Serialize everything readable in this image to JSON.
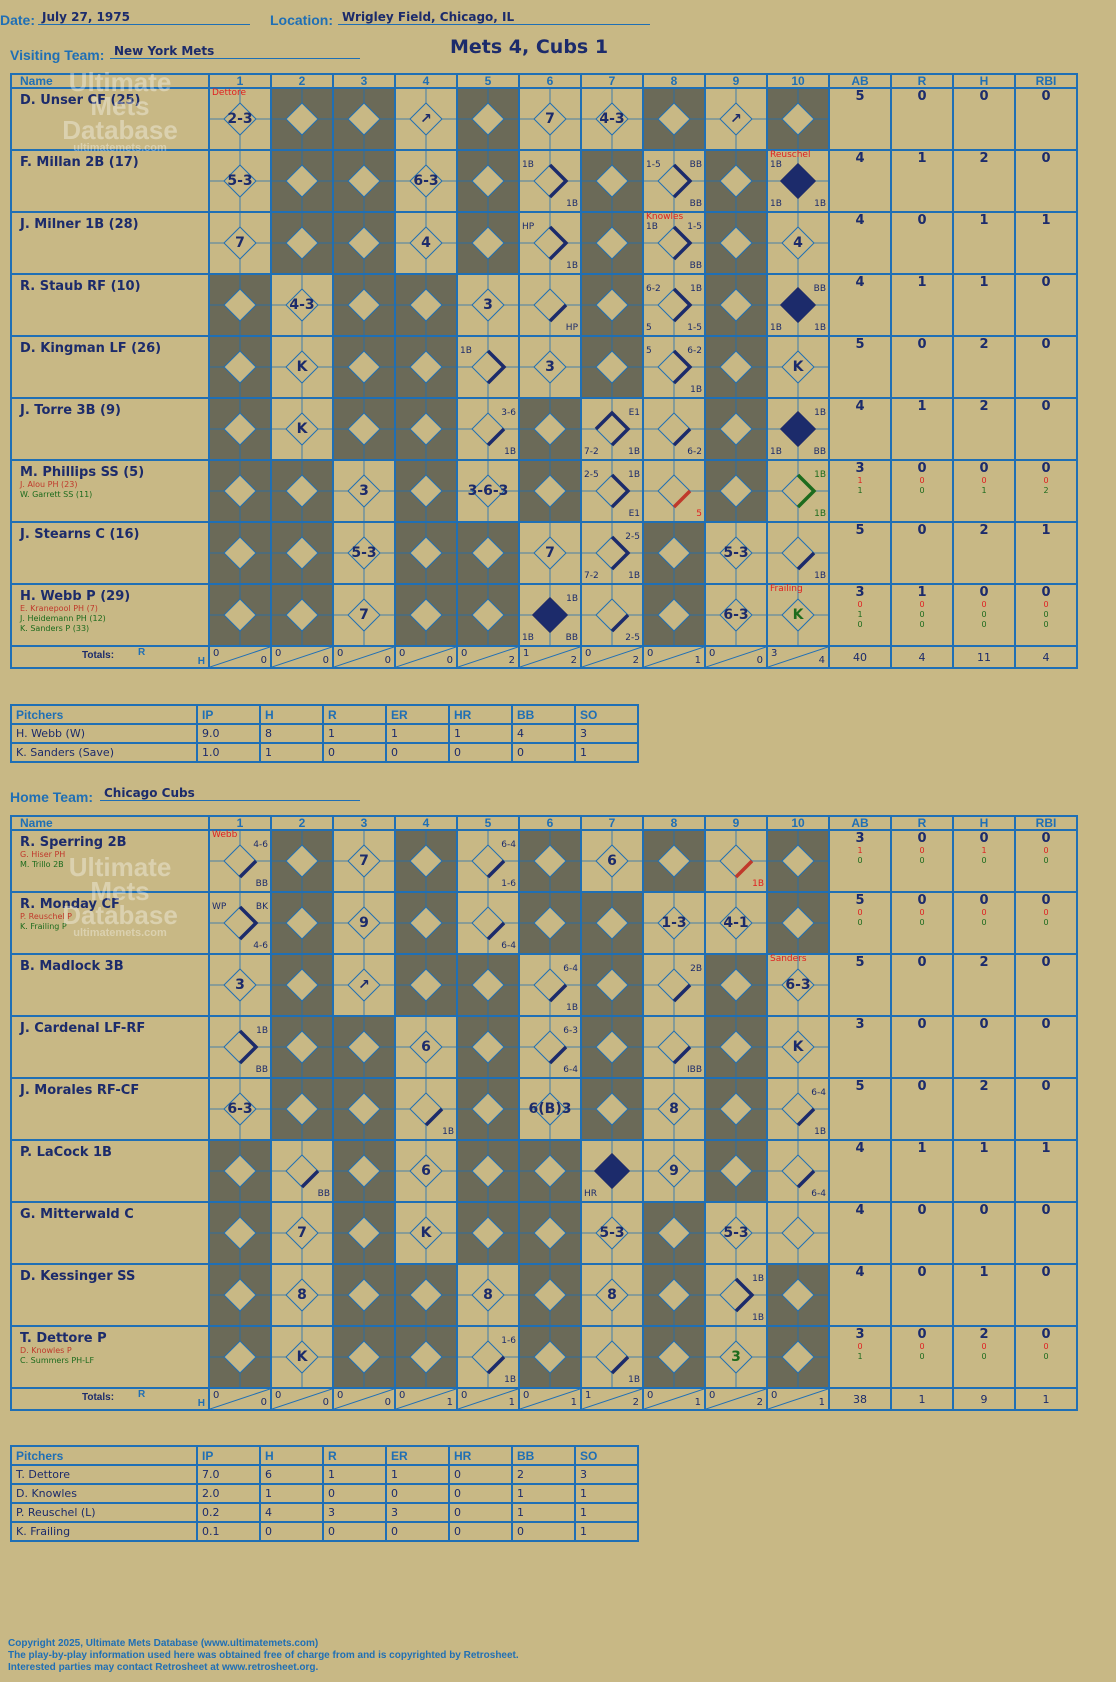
{
  "header": {
    "date_label": "Date:",
    "date": "July 27, 1975",
    "location_label": "Location:",
    "location": "Wrigley Field, Chicago, IL",
    "visiting_label": "Visiting Team:",
    "visiting_team": "New York Mets",
    "home_label": "Home Team:",
    "home_team": "Chicago Cubs",
    "result": "Mets 4, Cubs 1"
  },
  "columns": {
    "name": "Name",
    "innings": [
      "1",
      "2",
      "3",
      "4",
      "5",
      "6",
      "7",
      "8",
      "9",
      "10"
    ],
    "stats": [
      "AB",
      "R",
      "H",
      "RBI"
    ]
  },
  "totals_label": "Totals:",
  "rh_r": "R",
  "rh_h": "H",
  "pitch_cols": [
    "Pitchers",
    "IP",
    "H",
    "R",
    "ER",
    "HR",
    "BB",
    "SO"
  ],
  "watermark": {
    "line1": "Ultimate",
    "line2": "Mets",
    "line3": "Database",
    "url": "ultimatemets.com"
  },
  "visitors": {
    "batters": [
      {
        "name": "D. Unser CF (25)",
        "subs": [],
        "dark": [
          2,
          3,
          5,
          8,
          10
        ],
        "stats": [
          "5",
          "0",
          "0",
          "0"
        ],
        "plays": {
          "1": {
            "text": "2-3",
            "note": "Dettore"
          },
          "4": {
            "text": "↗"
          },
          "6": {
            "text": "7"
          },
          "7": {
            "text": "4-3"
          },
          "9": {
            "text": "↗"
          }
        }
      },
      {
        "name": "F. Millan 2B (17)",
        "subs": [],
        "dark": [
          2,
          3,
          5,
          7,
          9
        ],
        "stats": [
          "4",
          "1",
          "2",
          "0"
        ],
        "plays": {
          "1": {
            "text": "5-3"
          },
          "4": {
            "text": "6-3"
          },
          "6": {
            "path": 2,
            "tl": "1B",
            "br": "1B"
          },
          "8": {
            "path": 2,
            "tl": "1-5",
            "tr": "BB",
            "br": "BB"
          },
          "10": {
            "path": 4,
            "tl": "1B",
            "bl": "1B",
            "br": "1B",
            "note": "Reuschel"
          }
        }
      },
      {
        "name": "J. Milner 1B (28)",
        "subs": [],
        "dark": [
          2,
          3,
          5,
          7,
          9
        ],
        "stats": [
          "4",
          "0",
          "1",
          "1"
        ],
        "plays": {
          "1": {
            "text": "7"
          },
          "4": {
            "text": "4"
          },
          "6": {
            "path": 2,
            "tl": "HP",
            "br": "1B"
          },
          "8": {
            "path": 2,
            "tl": "1B",
            "tr": "1-5",
            "br": "BB",
            "note": "Knowles"
          },
          "10": {
            "text": "4"
          }
        }
      },
      {
        "name": "R. Staub RF (10)",
        "subs": [],
        "dark": [
          1,
          3,
          4,
          7,
          9
        ],
        "stats": [
          "4",
          "1",
          "1",
          "0"
        ],
        "plays": {
          "2": {
            "text": "4-3"
          },
          "5": {
            "text": "3"
          },
          "6": {
            "path": 1,
            "br": "HP"
          },
          "8": {
            "path": 2,
            "tl": "6-2",
            "tr": "1B",
            "bl": "5",
            "br": "1-5"
          },
          "10": {
            "path": 4,
            "tr": "BB",
            "bl": "1B",
            "br": "1B"
          }
        }
      },
      {
        "name": "D. Kingman LF (26)",
        "subs": [],
        "dark": [
          1,
          3,
          4,
          7,
          9
        ],
        "stats": [
          "5",
          "0",
          "2",
          "0"
        ],
        "plays": {
          "2": {
            "text": "K"
          },
          "5": {
            "path": 2,
            "tl": "1B"
          },
          "6": {
            "text": "3"
          },
          "8": {
            "path": 2,
            "tl": "5",
            "tr": "6-2",
            "br": "1B"
          },
          "10": {
            "text": "K"
          }
        }
      },
      {
        "name": "J. Torre 3B (9)",
        "subs": [],
        "dark": [
          1,
          3,
          4,
          6,
          9
        ],
        "stats": [
          "4",
          "1",
          "2",
          "0"
        ],
        "plays": {
          "2": {
            "text": "K"
          },
          "5": {
            "path": 1,
            "tr": "3-6",
            "br": "1B"
          },
          "7": {
            "path": 3,
            "tr": "E1",
            "bl": "7-2",
            "br": "1B"
          },
          "8": {
            "path": 1,
            "br": "6-2"
          },
          "10": {
            "path": 4,
            "tr": "1B",
            "bl": "1B",
            "br": "BB"
          }
        }
      },
      {
        "name": "M. Phillips SS (5)",
        "subs": [
          {
            "name": "J. Alou PH (23)",
            "c": "r",
            "stats": [
              "1",
              "0",
              "0",
              "0"
            ]
          },
          {
            "name": "W. Garrett SS (11)",
            "c": "g",
            "stats": [
              "1",
              "0",
              "1",
              "2"
            ]
          }
        ],
        "dark": [
          1,
          2,
          4,
          6,
          9
        ],
        "stats": [
          "3",
          "0",
          "0",
          "0"
        ],
        "plays": {
          "3": {
            "text": "3"
          },
          "5": {
            "text": "3-6-3"
          },
          "7": {
            "path": 2,
            "tl": "2-5",
            "tr": "1B",
            "br": "E1"
          },
          "8": {
            "path": 1,
            "red": true,
            "br": "5"
          },
          "10": {
            "path": 2,
            "green": true,
            "tr": "1B",
            "br": "1B"
          }
        }
      },
      {
        "name": "J. Stearns C (16)",
        "subs": [],
        "dark": [
          1,
          2,
          4,
          5,
          8
        ],
        "stats": [
          "5",
          "0",
          "2",
          "1"
        ],
        "plays": {
          "3": {
            "text": "5-3"
          },
          "6": {
            "text": "7"
          },
          "7": {
            "path": 2,
            "tr": "2-5",
            "bl": "7-2",
            "br": "1B"
          },
          "9": {
            "text": "5-3"
          },
          "10": {
            "path": 1,
            "br": "1B"
          }
        }
      },
      {
        "name": "H. Webb P (29)",
        "subs": [
          {
            "name": "E. Kranepool PH (7)",
            "c": "r",
            "stats": [
              "0",
              "0",
              "0",
              "0"
            ]
          },
          {
            "name": "J. Heidemann PH (12)",
            "c": "g",
            "stats": [
              "1",
              "0",
              "0",
              "0"
            ]
          },
          {
            "name": "K. Sanders P (33)",
            "c": "g",
            "stats": [
              "0",
              "0",
              "0",
              "0"
            ]
          }
        ],
        "dark": [
          1,
          2,
          4,
          5,
          8
        ],
        "stats": [
          "3",
          "1",
          "0",
          "0"
        ],
        "plays": {
          "3": {
            "text": "7"
          },
          "6": {
            "path": 4,
            "tr": "1B",
            "bl": "1B",
            "br": "BB"
          },
          "7": {
            "path": 1,
            "br": "2-5"
          },
          "9": {
            "text": "6-3"
          },
          "10": {
            "text": "K",
            "green": true,
            "note": "Frailing"
          }
        }
      }
    ],
    "totals": [
      [
        "0",
        "0"
      ],
      [
        "0",
        "0"
      ],
      [
        "0",
        "0"
      ],
      [
        "0",
        "0"
      ],
      [
        "0",
        "2"
      ],
      [
        "1",
        "2"
      ],
      [
        "0",
        "2"
      ],
      [
        "0",
        "1"
      ],
      [
        "0",
        "0"
      ],
      [
        "3",
        "4"
      ]
    ],
    "stat_totals": [
      "40",
      "4",
      "11",
      "4"
    ],
    "pitchers": [
      [
        "H. Webb (W)",
        "9.0",
        "8",
        "1",
        "1",
        "1",
        "4",
        "3"
      ],
      [
        "K. Sanders (Save)",
        "1.0",
        "1",
        "0",
        "0",
        "0",
        "0",
        "1"
      ]
    ]
  },
  "home": {
    "batters": [
      {
        "name": "R. Sperring 2B",
        "subs": [
          {
            "name": "G. Hiser PH",
            "c": "r",
            "stats": [
              "1",
              "0",
              "1",
              "0"
            ]
          },
          {
            "name": "M. Trillo 2B",
            "c": "g",
            "stats": [
              "0",
              "0",
              "0",
              "0"
            ]
          }
        ],
        "dark": [
          2,
          4,
          6,
          8,
          10
        ],
        "stats": [
          "3",
          "0",
          "0",
          "0"
        ],
        "plays": {
          "1": {
            "path": 1,
            "tr": "4-6",
            "br": "BB",
            "note": "Webb"
          },
          "3": {
            "text": "7"
          },
          "5": {
            "path": 1,
            "tr": "6-4",
            "br": "1-6"
          },
          "7": {
            "text": "6"
          },
          "9": {
            "path": 1,
            "red": true,
            "br": "1B"
          }
        }
      },
      {
        "name": "R. Monday CF",
        "subs": [
          {
            "name": "P. Reuschel P",
            "c": "r",
            "stats": [
              "0",
              "0",
              "0",
              "0"
            ]
          },
          {
            "name": "K. Frailing P",
            "c": "g",
            "stats": [
              "0",
              "0",
              "0",
              "0"
            ]
          }
        ],
        "dark": [
          2,
          4,
          6,
          7,
          10
        ],
        "stats": [
          "5",
          "0",
          "0",
          "0"
        ],
        "plays": {
          "1": {
            "path": 2,
            "tl": "WP",
            "tr": "BK",
            "br": "4-6"
          },
          "3": {
            "text": "9"
          },
          "5": {
            "path": 1,
            "br": "6-4"
          },
          "8": {
            "text": "1-3"
          },
          "9": {
            "text": "4-1"
          }
        }
      },
      {
        "name": "B. Madlock 3B",
        "subs": [],
        "dark": [
          2,
          4,
          5,
          7,
          9
        ],
        "stats": [
          "5",
          "0",
          "2",
          "0"
        ],
        "plays": {
          "1": {
            "text": "3"
          },
          "3": {
            "text": "↗"
          },
          "6": {
            "path": 1,
            "tr": "6-4",
            "br": "1B"
          },
          "8": {
            "path": 1,
            "tr": "2B"
          },
          "10": {
            "text": "6-3",
            "note": "Sanders"
          }
        }
      },
      {
        "name": "J. Cardenal LF-RF",
        "subs": [],
        "dark": [
          2,
          3,
          5,
          7,
          9
        ],
        "stats": [
          "3",
          "0",
          "0",
          "0"
        ],
        "plays": {
          "1": {
            "path": 2,
            "tr": "1B",
            "br": "BB"
          },
          "4": {
            "text": "6"
          },
          "6": {
            "path": 1,
            "tr": "6-3",
            "br": "6-4"
          },
          "8": {
            "path": 1,
            "br": "IBB"
          },
          "10": {
            "text": "K"
          }
        }
      },
      {
        "name": "J. Morales RF-CF",
        "subs": [],
        "dark": [
          2,
          3,
          5,
          7,
          9
        ],
        "stats": [
          "5",
          "0",
          "2",
          "0"
        ],
        "plays": {
          "1": {
            "text": "6-3"
          },
          "4": {
            "path": 1,
            "br": "1B"
          },
          "6": {
            "text": "6(B)3"
          },
          "8": {
            "text": "8"
          },
          "10": {
            "path": 1,
            "tr": "6-4",
            "br": "1B"
          }
        }
      },
      {
        "name": "P. LaCock 1B",
        "subs": [],
        "dark": [
          1,
          3,
          5,
          6,
          9
        ],
        "stats": [
          "4",
          "1",
          "1",
          "1"
        ],
        "plays": {
          "2": {
            "path": 1,
            "br": "BB"
          },
          "4": {
            "text": "6"
          },
          "7": {
            "path": 4,
            "bl": "HR"
          },
          "8": {
            "text": "9"
          },
          "10": {
            "path": 1,
            "br": "6-4"
          }
        }
      },
      {
        "name": "G. Mitterwald C",
        "subs": [],
        "dark": [
          1,
          3,
          5,
          6,
          8
        ],
        "stats": [
          "4",
          "0",
          "0",
          "0"
        ],
        "plays": {
          "2": {
            "text": "7"
          },
          "4": {
            "text": "K"
          },
          "7": {
            "text": "5-3"
          },
          "9": {
            "text": "5-3"
          }
        }
      },
      {
        "name": "D. Kessinger SS",
        "subs": [],
        "dark": [
          1,
          3,
          4,
          6,
          8,
          10
        ],
        "stats": [
          "4",
          "0",
          "1",
          "0"
        ],
        "plays": {
          "2": {
            "text": "8"
          },
          "5": {
            "text": "8"
          },
          "7": {
            "text": "8"
          },
          "9": {
            "path": 2,
            "tr": "1B",
            "br": "1B"
          }
        }
      },
      {
        "name": "T. Dettore P",
        "subs": [
          {
            "name": "D. Knowles P",
            "c": "r",
            "stats": [
              "0",
              "0",
              "0",
              "0"
            ]
          },
          {
            "name": "C. Summers PH-LF",
            "c": "g",
            "stats": [
              "1",
              "0",
              "0",
              "0"
            ]
          }
        ],
        "dark": [
          1,
          3,
          4,
          6,
          8,
          10
        ],
        "stats": [
          "3",
          "0",
          "2",
          "0"
        ],
        "plays": {
          "2": {
            "text": "K"
          },
          "5": {
            "path": 1,
            "tr": "1-6",
            "br": "1B"
          },
          "7": {
            "path": 1,
            "br": "1B"
          },
          "9": {
            "text": "3",
            "green": true
          }
        }
      }
    ],
    "totals": [
      [
        "0",
        "0"
      ],
      [
        "0",
        "0"
      ],
      [
        "0",
        "0"
      ],
      [
        "0",
        "1"
      ],
      [
        "0",
        "1"
      ],
      [
        "0",
        "1"
      ],
      [
        "1",
        "2"
      ],
      [
        "0",
        "1"
      ],
      [
        "0",
        "2"
      ],
      [
        "0",
        "1"
      ]
    ],
    "stat_totals": [
      "38",
      "1",
      "9",
      "1"
    ],
    "pitchers": [
      [
        "T. Dettore",
        "7.0",
        "6",
        "1",
        "1",
        "0",
        "2",
        "3"
      ],
      [
        "D. Knowles",
        "2.0",
        "1",
        "0",
        "0",
        "0",
        "1",
        "1"
      ],
      [
        "P. Reuschel (L)",
        "0.2",
        "4",
        "3",
        "3",
        "0",
        "1",
        "1"
      ],
      [
        "K. Frailing",
        "0.1",
        "0",
        "0",
        "0",
        "0",
        "0",
        "1"
      ]
    ]
  },
  "footer": {
    "line1": "Copyright 2025, Ultimate Mets Database (www.ultimatemets.com)",
    "line2": "The play-by-play information used here was obtained free of charge from and is copyrighted by Retrosheet.",
    "line3": "Interested parties may contact Retrosheet at www.retrosheet.org."
  }
}
